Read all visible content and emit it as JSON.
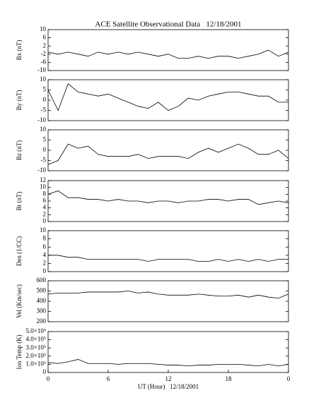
{
  "chart_data": [
    {
      "type": "line",
      "title": "ACE Satellite Observational Data   12/18/2001",
      "ylabel": "Bx (nT)",
      "x": [
        0,
        1,
        2,
        3,
        4,
        5,
        6,
        7,
        8,
        9,
        10,
        11,
        12,
        13,
        14,
        15,
        16,
        17,
        18,
        19,
        20,
        21,
        22,
        23,
        24
      ],
      "values": [
        -1,
        -2,
        -1,
        -2,
        -3,
        -1,
        -2,
        -1,
        -2,
        -1,
        -2,
        -3,
        -2,
        -4,
        -4,
        -3,
        -4,
        -3,
        -3,
        -4,
        -3,
        -2,
        0,
        -3,
        -1
      ],
      "xlim": [
        0,
        24
      ],
      "ylim": [
        -10,
        10
      ],
      "yticks": [
        -10,
        -6,
        -2,
        2,
        6,
        10
      ],
      "color": "#000000"
    },
    {
      "type": "line",
      "ylabel": "By (nT)",
      "x": [
        0,
        1,
        2,
        3,
        4,
        5,
        6,
        7,
        8,
        9,
        10,
        11,
        12,
        13,
        14,
        15,
        16,
        17,
        18,
        19,
        20,
        21,
        22,
        23,
        24
      ],
      "values": [
        5,
        -5,
        8,
        4,
        3,
        2,
        3,
        1,
        -1,
        -3,
        -4,
        -1,
        -5,
        -3,
        1,
        0,
        2,
        3,
        4,
        4,
        3,
        2,
        2,
        -1,
        -1
      ],
      "xlim": [
        0,
        24
      ],
      "ylim": [
        -10,
        10
      ],
      "yticks": [
        -10,
        -5,
        0,
        5,
        10
      ],
      "color": "#000000"
    },
    {
      "type": "line",
      "ylabel": "Bz (nT)",
      "x": [
        0,
        1,
        2,
        3,
        4,
        5,
        6,
        7,
        8,
        9,
        10,
        11,
        12,
        13,
        14,
        15,
        16,
        17,
        18,
        19,
        20,
        21,
        22,
        23,
        24
      ],
      "values": [
        -7,
        -5,
        3,
        1,
        2,
        -2,
        -3,
        -3,
        -3,
        -2,
        -4,
        -3,
        -3,
        -3,
        -4,
        -1,
        1,
        -1,
        1,
        3,
        1,
        -2,
        -2,
        0,
        -4
      ],
      "xlim": [
        0,
        24
      ],
      "ylim": [
        -10,
        10
      ],
      "yticks": [
        -10,
        -5,
        0,
        5,
        10
      ],
      "color": "#000000"
    },
    {
      "type": "line",
      "ylabel": "Bt (nT)",
      "x": [
        0,
        1,
        2,
        3,
        4,
        5,
        6,
        7,
        8,
        9,
        10,
        11,
        12,
        13,
        14,
        15,
        16,
        17,
        18,
        19,
        20,
        21,
        22,
        23,
        24
      ],
      "values": [
        8,
        9,
        7,
        7,
        6.5,
        6.5,
        6,
        6.5,
        6,
        6,
        5.5,
        6,
        6,
        5.5,
        6,
        6,
        6.5,
        6.5,
        6,
        6.5,
        6.5,
        5,
        5.5,
        6,
        5.5
      ],
      "xlim": [
        0,
        24
      ],
      "ylim": [
        0,
        12
      ],
      "yticks": [
        0,
        2,
        4,
        6,
        8,
        10,
        12
      ],
      "color": "#000000"
    },
    {
      "type": "line",
      "ylabel": "Den (1/CC)",
      "x": [
        0,
        1,
        2,
        3,
        4,
        5,
        6,
        7,
        8,
        9,
        10,
        11,
        12,
        13,
        14,
        15,
        16,
        17,
        18,
        19,
        20,
        21,
        22,
        23,
        24
      ],
      "values": [
        4,
        4,
        3.5,
        3.5,
        3,
        3,
        3,
        3,
        3,
        3,
        2.5,
        3,
        3,
        3,
        3,
        2.5,
        2.5,
        3,
        2.5,
        3,
        2.5,
        3,
        2.5,
        3,
        3
      ],
      "xlim": [
        0,
        24
      ],
      "ylim": [
        0,
        10
      ],
      "yticks": [
        0,
        2,
        4,
        6,
        8,
        10
      ],
      "color": "#000000"
    },
    {
      "type": "line",
      "ylabel": "Vel (Km/sec)",
      "x": [
        0,
        1,
        2,
        3,
        4,
        5,
        6,
        7,
        8,
        9,
        10,
        11,
        12,
        13,
        14,
        15,
        16,
        17,
        18,
        19,
        20,
        21,
        22,
        23,
        24
      ],
      "values": [
        470,
        480,
        480,
        480,
        490,
        490,
        490,
        490,
        500,
        480,
        490,
        470,
        460,
        460,
        460,
        470,
        460,
        450,
        450,
        460,
        440,
        460,
        440,
        430,
        470
      ],
      "xlim": [
        0,
        24
      ],
      "ylim": [
        200,
        600
      ],
      "yticks": [
        200,
        300,
        400,
        500,
        600
      ],
      "color": "#000000"
    },
    {
      "type": "line",
      "ylabel": "Ion Temp (K)",
      "xlabel": "UT (Hour)   12/18/2001",
      "x": [
        0,
        1,
        2,
        3,
        4,
        5,
        6,
        7,
        8,
        9,
        10,
        11,
        12,
        13,
        14,
        15,
        16,
        17,
        18,
        19,
        20,
        21,
        22,
        23,
        24
      ],
      "values": [
        120000,
        110000,
        130000,
        160000,
        110000,
        110000,
        110000,
        100000,
        110000,
        110000,
        110000,
        100000,
        90000,
        90000,
        80000,
        90000,
        90000,
        100000,
        100000,
        100000,
        90000,
        80000,
        100000,
        80000,
        100000
      ],
      "xlim": [
        0,
        24
      ],
      "ylim": [
        0,
        500000
      ],
      "yticks": [
        0,
        {
          "value": 100000,
          "label": "1.0×10⁵"
        },
        {
          "value": 200000,
          "label": "2.0×10⁵"
        },
        {
          "value": 300000,
          "label": "3.0×10⁵"
        },
        {
          "value": 400000,
          "label": "4.0×10⁵"
        },
        {
          "value": 500000,
          "label": "5.0×10⁵"
        }
      ],
      "xticks": [
        0,
        6,
        12,
        18,
        {
          "value": 24,
          "label": "0"
        }
      ],
      "color": "#000000"
    }
  ]
}
